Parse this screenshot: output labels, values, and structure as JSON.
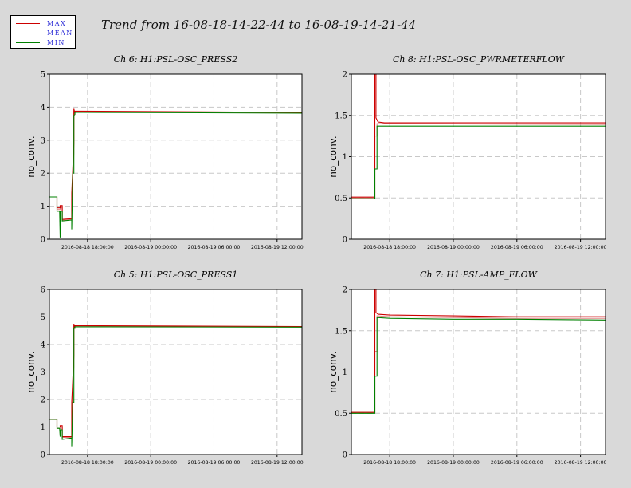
{
  "page_title": "Trend from 16-08-18-14-22-44 to 16-08-19-14-21-44",
  "legend": [
    {
      "label": "MAX",
      "color": "#cc0000"
    },
    {
      "label": "MEAN",
      "color": "#e08a8a"
    },
    {
      "label": "MIN",
      "color": "#008000"
    }
  ],
  "chart_data": [
    {
      "type": "line",
      "title": "Ch 6: H1:PSL-OSC_PRESS2",
      "ylabel": "no_conv.",
      "ylim": [
        0,
        5
      ],
      "yticks": [
        "0",
        "1",
        "2",
        "3",
        "4",
        "5"
      ],
      "xticks": [
        "2016-08-18 18:00:00",
        "2016-08-19 00:00:00",
        "2016-08-19 06:00:00",
        "2016-08-19 12:00:00"
      ],
      "xlim_hours": [
        14.38,
        38.36
      ],
      "grid": true,
      "series": [
        {
          "name": "MAX",
          "x": [
            14.38,
            15.1,
            15.1,
            15.4,
            15.4,
            15.6,
            15.6,
            16.5,
            16.5,
            16.7,
            16.7,
            16.8,
            16.8,
            17.5,
            38.36
          ],
          "y": [
            1.28,
            1.28,
            0.95,
            0.95,
            1.02,
            1.02,
            0.6,
            0.62,
            1.4,
            2.9,
            3.95,
            3.82,
            3.88,
            3.88,
            3.84
          ]
        },
        {
          "name": "MEAN",
          "x": [
            14.38,
            15.1,
            15.1,
            15.4,
            15.4,
            15.6,
            15.6,
            16.5,
            16.5,
            16.7,
            16.7,
            16.8,
            16.8,
            17.5,
            38.36
          ],
          "y": [
            1.28,
            1.28,
            0.9,
            0.9,
            0.95,
            0.95,
            0.58,
            0.6,
            1.2,
            2.6,
            3.85,
            3.8,
            3.86,
            3.86,
            3.83
          ]
        },
        {
          "name": "MIN",
          "x": [
            14.38,
            15.1,
            15.1,
            15.35,
            15.4,
            15.4,
            15.6,
            15.6,
            16.5,
            16.5,
            16.6,
            16.7,
            16.7,
            16.8,
            16.8,
            17.5,
            38.36
          ],
          "y": [
            1.28,
            1.28,
            0.85,
            0.85,
            0.05,
            0.85,
            0.85,
            0.55,
            0.58,
            0.3,
            2.0,
            2.0,
            3.75,
            3.78,
            3.84,
            3.84,
            3.82
          ]
        }
      ]
    },
    {
      "type": "line",
      "title": "Ch 8: H1:PSL-OSC_PWRMETERFLOW",
      "ylabel": "no_conv.",
      "ylim": [
        0,
        2
      ],
      "yticks": [
        "0",
        "0.5",
        "1",
        "1.5",
        "2"
      ],
      "xticks": [
        "2016-08-18 18:00:00",
        "2016-08-19 00:00:00",
        "2016-08-19 06:00:00",
        "2016-08-19 12:00:00"
      ],
      "xlim_hours": [
        14.38,
        38.36
      ],
      "grid": true,
      "series": [
        {
          "name": "MAX",
          "x": [
            14.38,
            16.6,
            16.6,
            16.7,
            16.7,
            16.9,
            17.5,
            38.36
          ],
          "y": [
            0.51,
            0.51,
            2.0,
            2.0,
            1.47,
            1.42,
            1.41,
            1.41
          ]
        },
        {
          "name": "MEAN",
          "x": [
            14.38,
            16.6,
            16.6,
            16.8,
            16.8,
            38.36
          ],
          "y": [
            0.5,
            0.5,
            1.25,
            1.25,
            1.4,
            1.39
          ]
        },
        {
          "name": "MIN",
          "x": [
            14.38,
            16.6,
            16.6,
            16.8,
            16.8,
            38.36
          ],
          "y": [
            0.49,
            0.49,
            0.85,
            0.85,
            1.37,
            1.37
          ]
        }
      ]
    },
    {
      "type": "line",
      "title": "Ch 5: H1:PSL-OSC_PRESS1",
      "ylabel": "no_conv.",
      "ylim": [
        0,
        6
      ],
      "yticks": [
        "0",
        "1",
        "2",
        "3",
        "4",
        "5",
        "6"
      ],
      "xticks": [
        "2016-08-18 18:00:00",
        "2016-08-19 00:00:00",
        "2016-08-19 06:00:00",
        "2016-08-19 12:00:00"
      ],
      "xlim_hours": [
        14.38,
        38.36
      ],
      "grid": true,
      "series": [
        {
          "name": "MAX",
          "x": [
            14.38,
            15.1,
            15.1,
            15.4,
            15.4,
            15.6,
            15.6,
            16.5,
            16.5,
            16.7,
            16.7,
            16.8,
            16.8,
            17.5,
            38.36
          ],
          "y": [
            1.28,
            1.28,
            1.0,
            1.0,
            1.05,
            1.05,
            0.65,
            0.65,
            1.9,
            3.6,
            4.75,
            4.62,
            4.68,
            4.68,
            4.65
          ]
        },
        {
          "name": "MEAN",
          "x": [
            14.38,
            15.1,
            15.1,
            15.4,
            15.4,
            15.6,
            15.6,
            16.5,
            16.5,
            16.7,
            16.7,
            16.8,
            16.8,
            17.5,
            38.36
          ],
          "y": [
            1.28,
            1.28,
            0.95,
            0.95,
            1.0,
            1.0,
            0.62,
            0.62,
            1.6,
            3.2,
            4.68,
            4.62,
            4.66,
            4.66,
            4.64
          ]
        },
        {
          "name": "MIN",
          "x": [
            14.38,
            15.1,
            15.1,
            15.35,
            15.4,
            15.4,
            15.6,
            15.6,
            16.5,
            16.5,
            16.6,
            16.7,
            16.7,
            16.8,
            16.8,
            17.5,
            38.36
          ],
          "y": [
            1.28,
            1.28,
            0.95,
            0.95,
            0.65,
            0.9,
            0.9,
            0.55,
            0.6,
            0.3,
            1.9,
            1.9,
            4.6,
            4.62,
            4.64,
            4.64,
            4.63
          ]
        }
      ]
    },
    {
      "type": "line",
      "title": "Ch 7: H1:PSL-AMP_FLOW",
      "ylabel": "no_conv.",
      "ylim": [
        0,
        2
      ],
      "yticks": [
        "0",
        "0.5",
        "1",
        "1.5",
        "2"
      ],
      "xticks": [
        "2016-08-18 18:00:00",
        "2016-08-19 00:00:00",
        "2016-08-19 06:00:00",
        "2016-08-19 12:00:00"
      ],
      "xlim_hours": [
        14.38,
        38.36
      ],
      "grid": true,
      "series": [
        {
          "name": "MAX",
          "x": [
            14.38,
            16.6,
            16.6,
            16.7,
            16.7,
            16.9,
            18.0,
            24.0,
            30.0,
            38.36
          ],
          "y": [
            0.51,
            0.51,
            2.0,
            2.0,
            1.72,
            1.7,
            1.69,
            1.68,
            1.67,
            1.67
          ]
        },
        {
          "name": "MEAN",
          "x": [
            14.38,
            16.6,
            16.6,
            16.8,
            16.8,
            18.0,
            24.0,
            30.0,
            38.36
          ],
          "y": [
            0.51,
            0.51,
            1.25,
            1.25,
            1.68,
            1.67,
            1.66,
            1.65,
            1.65
          ]
        },
        {
          "name": "MIN",
          "x": [
            14.38,
            16.6,
            16.6,
            16.8,
            16.8,
            18.0,
            24.0,
            30.0,
            38.36
          ],
          "y": [
            0.5,
            0.5,
            0.95,
            0.95,
            1.66,
            1.65,
            1.64,
            1.64,
            1.63
          ]
        }
      ]
    }
  ]
}
